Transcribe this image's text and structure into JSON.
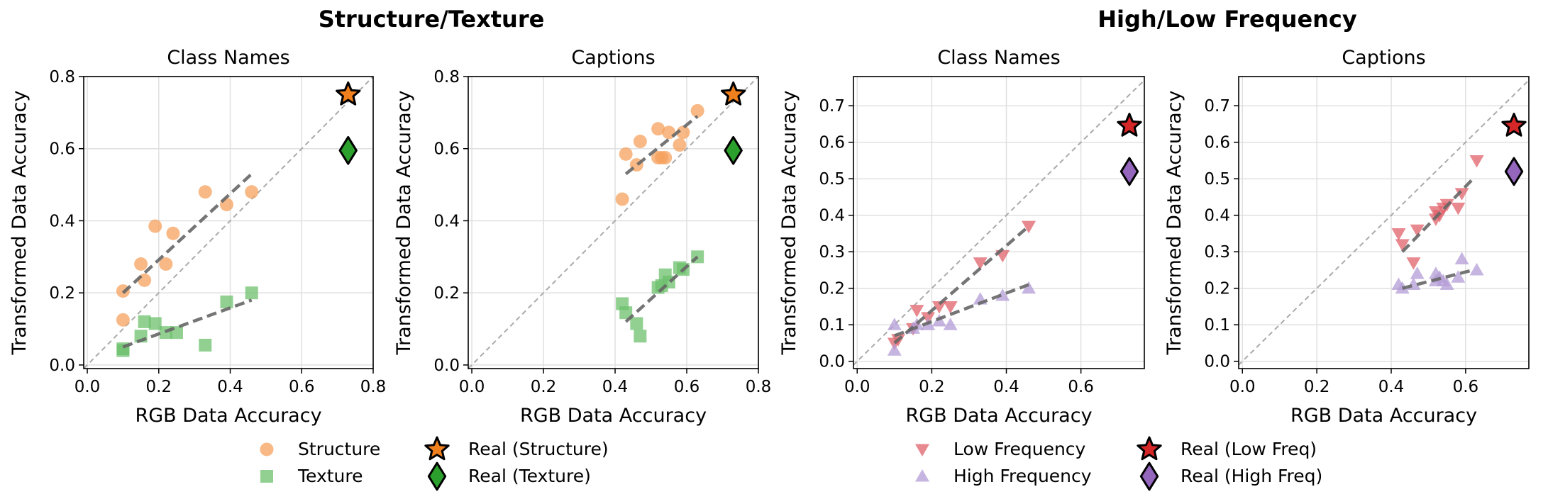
{
  "group_titles": [
    "Structure/Texture",
    "High/Low Frequency"
  ],
  "legends": [
    {
      "items": [
        {
          "label": "Structure",
          "marker": "circle",
          "color": "#f5a25d"
        },
        {
          "label": "Real (Structure)",
          "marker": "star",
          "color": "#f07f1d"
        },
        {
          "label": "Texture",
          "marker": "square",
          "color": "#6cc06c"
        },
        {
          "label": "Real (Texture)",
          "marker": "diamond",
          "color": "#2ca02c"
        }
      ]
    },
    {
      "items": [
        {
          "label": "Low Frequency",
          "marker": "triangle-down",
          "color": "#e0606a"
        },
        {
          "label": "Real (Low Freq)",
          "marker": "star",
          "color": "#d62728"
        },
        {
          "label": "High Frequency",
          "marker": "triangle-up",
          "color": "#b39cd6"
        },
        {
          "label": "Real (High Freq)",
          "marker": "diamond",
          "color": "#9467bd"
        }
      ]
    }
  ],
  "chart_data": [
    {
      "type": "scatter",
      "title": "Class Names",
      "xlabel": "RGB Data Accuracy",
      "ylabel": "Transformed Data Accuracy",
      "xlim": [
        -0.01,
        0.8
      ],
      "ylim": [
        -0.01,
        0.8
      ],
      "xticks": [
        0.0,
        0.2,
        0.4,
        0.6,
        0.8
      ],
      "yticks": [
        0.0,
        0.2,
        0.4,
        0.6,
        0.8
      ],
      "xtick_labels": [
        "0.0",
        "0.2",
        "0.4",
        "0.6",
        "0.8"
      ],
      "ytick_labels": [
        "0.0",
        "0.2",
        "0.4",
        "0.6",
        "0.8"
      ],
      "grid": true,
      "diagonal": true,
      "series": [
        {
          "name": "Structure",
          "marker": "circle",
          "color": "#f5a25d",
          "x": [
            0.1,
            0.1,
            0.15,
            0.16,
            0.19,
            0.22,
            0.24,
            0.33,
            0.39,
            0.46
          ],
          "y": [
            0.125,
            0.205,
            0.28,
            0.235,
            0.385,
            0.28,
            0.365,
            0.48,
            0.445,
            0.48
          ],
          "fit": {
            "x": [
              0.1,
              0.46
            ],
            "y": [
              0.2,
              0.53
            ]
          }
        },
        {
          "name": "Texture",
          "marker": "square",
          "color": "#6cc06c",
          "x": [
            0.1,
            0.1,
            0.15,
            0.16,
            0.19,
            0.22,
            0.25,
            0.33,
            0.39,
            0.46
          ],
          "y": [
            0.04,
            0.045,
            0.08,
            0.12,
            0.115,
            0.09,
            0.09,
            0.055,
            0.175,
            0.2
          ],
          "fit": {
            "x": [
              0.1,
              0.46
            ],
            "y": [
              0.05,
              0.18
            ]
          }
        },
        {
          "name": "Real (Structure)",
          "marker": "star",
          "color": "#f07f1d",
          "x": [
            0.73
          ],
          "y": [
            0.75
          ]
        },
        {
          "name": "Real (Texture)",
          "marker": "diamond",
          "color": "#2ca02c",
          "x": [
            0.73
          ],
          "y": [
            0.595
          ]
        }
      ]
    },
    {
      "type": "scatter",
      "title": "Captions",
      "xlabel": "RGB Data Accuracy",
      "ylabel": "Transformed Data Accuracy",
      "xlim": [
        -0.01,
        0.8
      ],
      "ylim": [
        -0.01,
        0.8
      ],
      "xticks": [
        0.0,
        0.2,
        0.4,
        0.6,
        0.8
      ],
      "yticks": [
        0.0,
        0.2,
        0.4,
        0.6,
        0.8
      ],
      "xtick_labels": [
        "0.0",
        "0.2",
        "0.4",
        "0.6",
        "0.8"
      ],
      "ytick_labels": [
        "0.0",
        "0.2",
        "0.4",
        "0.6",
        "0.8"
      ],
      "grid": true,
      "diagonal": true,
      "series": [
        {
          "name": "Structure",
          "marker": "circle",
          "color": "#f5a25d",
          "x": [
            0.42,
            0.43,
            0.46,
            0.47,
            0.52,
            0.52,
            0.53,
            0.54,
            0.55,
            0.58,
            0.59,
            0.63
          ],
          "y": [
            0.46,
            0.585,
            0.555,
            0.62,
            0.655,
            0.575,
            0.575,
            0.575,
            0.645,
            0.61,
            0.645,
            0.705
          ],
          "fit": {
            "x": [
              0.43,
              0.63
            ],
            "y": [
              0.53,
              0.69
            ]
          }
        },
        {
          "name": "Texture",
          "marker": "square",
          "color": "#6cc06c",
          "x": [
            0.42,
            0.43,
            0.46,
            0.47,
            0.52,
            0.53,
            0.54,
            0.55,
            0.58,
            0.59,
            0.63
          ],
          "y": [
            0.17,
            0.145,
            0.115,
            0.08,
            0.215,
            0.22,
            0.25,
            0.23,
            0.27,
            0.265,
            0.3
          ],
          "fit": {
            "x": [
              0.43,
              0.63
            ],
            "y": [
              0.12,
              0.3
            ]
          }
        },
        {
          "name": "Real (Structure)",
          "marker": "star",
          "color": "#f07f1d",
          "x": [
            0.73
          ],
          "y": [
            0.75
          ]
        },
        {
          "name": "Real (Texture)",
          "marker": "diamond",
          "color": "#2ca02c",
          "x": [
            0.73
          ],
          "y": [
            0.595
          ]
        }
      ]
    },
    {
      "type": "scatter",
      "title": "Class Names",
      "xlabel": "RGB Data Accuracy",
      "ylabel": "Transformed Data Accuracy",
      "xlim": [
        -0.01,
        0.77
      ],
      "ylim": [
        -0.02,
        0.78
      ],
      "xticks": [
        0.0,
        0.2,
        0.4,
        0.6
      ],
      "yticks": [
        0.0,
        0.1,
        0.2,
        0.3,
        0.4,
        0.5,
        0.6,
        0.7
      ],
      "xtick_labels": [
        "0.0",
        "0.2",
        "0.4",
        "0.6"
      ],
      "ytick_labels": [
        "0.0",
        "0.1",
        "0.2",
        "0.3",
        "0.4",
        "0.5",
        "0.6",
        "0.7"
      ],
      "grid": true,
      "diagonal": true,
      "series": [
        {
          "name": "Low Frequency",
          "marker": "triangle-down",
          "color": "#e0606a",
          "x": [
            0.1,
            0.11,
            0.15,
            0.16,
            0.19,
            0.22,
            0.25,
            0.33,
            0.39,
            0.46
          ],
          "y": [
            0.05,
            0.06,
            0.09,
            0.14,
            0.12,
            0.15,
            0.15,
            0.27,
            0.29,
            0.37
          ],
          "fit": {
            "x": [
              0.1,
              0.46
            ],
            "y": [
              0.05,
              0.37
            ]
          }
        },
        {
          "name": "High Frequency",
          "marker": "triangle-up",
          "color": "#b39cd6",
          "x": [
            0.1,
            0.1,
            0.15,
            0.16,
            0.19,
            0.22,
            0.25,
            0.33,
            0.39,
            0.46
          ],
          "y": [
            0.03,
            0.1,
            0.09,
            0.1,
            0.1,
            0.11,
            0.1,
            0.17,
            0.18,
            0.2
          ],
          "fit": {
            "x": [
              0.1,
              0.46
            ],
            "y": [
              0.07,
              0.21
            ]
          }
        },
        {
          "name": "Real (Low Freq)",
          "marker": "star",
          "color": "#d62728",
          "x": [
            0.73
          ],
          "y": [
            0.645
          ]
        },
        {
          "name": "Real (High Freq)",
          "marker": "diamond",
          "color": "#9467bd",
          "x": [
            0.73
          ],
          "y": [
            0.52
          ]
        }
      ]
    },
    {
      "type": "scatter",
      "title": "Captions",
      "xlabel": "RGB Data Accuracy",
      "ylabel": "Transformed Data Accuracy",
      "xlim": [
        -0.01,
        0.77
      ],
      "ylim": [
        -0.02,
        0.78
      ],
      "xticks": [
        0.0,
        0.2,
        0.4,
        0.6
      ],
      "yticks": [
        0.0,
        0.1,
        0.2,
        0.3,
        0.4,
        0.5,
        0.6,
        0.7
      ],
      "xtick_labels": [
        "0.0",
        "0.2",
        "0.4",
        "0.6"
      ],
      "ytick_labels": [
        "0.0",
        "0.1",
        "0.2",
        "0.3",
        "0.4",
        "0.5",
        "0.6",
        "0.7"
      ],
      "grid": true,
      "diagonal": true,
      "series": [
        {
          "name": "Low Frequency",
          "marker": "triangle-down",
          "color": "#e0606a",
          "x": [
            0.42,
            0.43,
            0.46,
            0.47,
            0.52,
            0.52,
            0.53,
            0.54,
            0.55,
            0.58,
            0.59,
            0.63
          ],
          "y": [
            0.35,
            0.32,
            0.27,
            0.36,
            0.39,
            0.41,
            0.4,
            0.42,
            0.43,
            0.42,
            0.46,
            0.55
          ],
          "fit": {
            "x": [
              0.43,
              0.62
            ],
            "y": [
              0.3,
              0.5
            ]
          }
        },
        {
          "name": "High Frequency",
          "marker": "triangle-up",
          "color": "#b39cd6",
          "x": [
            0.42,
            0.43,
            0.46,
            0.47,
            0.52,
            0.52,
            0.53,
            0.54,
            0.55,
            0.58,
            0.59,
            0.63
          ],
          "y": [
            0.21,
            0.2,
            0.21,
            0.24,
            0.24,
            0.22,
            0.23,
            0.22,
            0.21,
            0.23,
            0.28,
            0.25
          ],
          "fit": {
            "x": [
              0.43,
              0.62
            ],
            "y": [
              0.2,
              0.25
            ]
          }
        },
        {
          "name": "Real (Low Freq)",
          "marker": "star",
          "color": "#d62728",
          "x": [
            0.73
          ],
          "y": [
            0.645
          ]
        },
        {
          "name": "Real (High Freq)",
          "marker": "diamond",
          "color": "#9467bd",
          "x": [
            0.73
          ],
          "y": [
            0.52
          ]
        }
      ]
    }
  ]
}
